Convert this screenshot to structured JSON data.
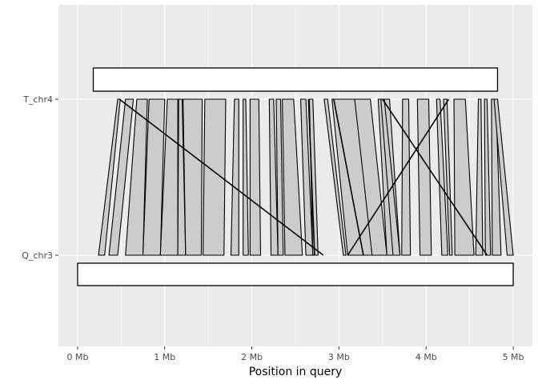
{
  "chart_data": {
    "type": "synteny",
    "xlabel": "Position in query",
    "ylabel": "",
    "xlim": [
      -0.22,
      5.22
    ],
    "x_ticks": [
      {
        "value": 0,
        "label": "0 Mb"
      },
      {
        "value": 1,
        "label": "1 Mb"
      },
      {
        "value": 2,
        "label": "2 Mb"
      },
      {
        "value": 3,
        "label": "3 Mb"
      },
      {
        "value": 4,
        "label": "4 Mb"
      },
      {
        "value": 5,
        "label": "5 Mb"
      }
    ],
    "y_categories": [
      "T_chr4",
      "Q_chr3"
    ],
    "grid": true,
    "chromosomes": [
      {
        "name": "T_chr4",
        "start": 0.18,
        "end": 4.82
      },
      {
        "name": "Q_chr3",
        "start": 0.0,
        "end": 5.0
      }
    ],
    "links": [
      {
        "q_start": 0.24,
        "q_end": 0.31,
        "t_start": 0.46,
        "t_end": 0.49
      },
      {
        "q_start": 0.36,
        "q_end": 0.46,
        "t_start": 0.55,
        "t_end": 0.64
      },
      {
        "q_start": 0.55,
        "q_end": 0.75,
        "t_start": 0.68,
        "t_end": 0.8
      },
      {
        "q_start": 0.75,
        "q_end": 0.95,
        "t_start": 0.82,
        "t_end": 1.0
      },
      {
        "q_start": 0.95,
        "q_end": 1.15,
        "t_start": 1.03,
        "t_end": 1.15
      },
      {
        "q_start": 1.15,
        "q_end": 1.24,
        "t_start": 1.16,
        "t_end": 1.2
      },
      {
        "q_start": 1.24,
        "q_end": 1.42,
        "t_start": 1.21,
        "t_end": 1.43
      },
      {
        "q_start": 1.44,
        "q_end": 1.68,
        "t_start": 1.46,
        "t_end": 1.7
      },
      {
        "q_start": 1.76,
        "q_end": 1.85,
        "t_start": 1.8,
        "t_end": 1.85
      },
      {
        "q_start": 1.9,
        "q_end": 1.96,
        "t_start": 1.9,
        "t_end": 1.93
      },
      {
        "q_start": 1.98,
        "q_end": 2.1,
        "t_start": 1.98,
        "t_end": 2.08
      },
      {
        "q_start": 2.22,
        "q_end": 2.3,
        "t_start": 2.2,
        "t_end": 2.25
      },
      {
        "q_start": 2.3,
        "q_end": 2.36,
        "t_start": 2.28,
        "t_end": 2.33
      },
      {
        "q_start": 2.38,
        "q_end": 2.58,
        "t_start": 2.35,
        "t_end": 2.48
      },
      {
        "q_start": 2.62,
        "q_end": 2.7,
        "t_start": 2.56,
        "t_end": 2.62
      },
      {
        "q_start": 2.7,
        "q_end": 2.76,
        "t_start": 2.66,
        "t_end": 2.7
      },
      {
        "q_start": 3.05,
        "q_end": 3.08,
        "t_start": 2.83,
        "t_end": 2.87
      },
      {
        "q_start": 3.1,
        "q_end": 3.4,
        "t_start": 2.92,
        "t_end": 3.18
      },
      {
        "q_start": 3.38,
        "q_end": 3.55,
        "t_start": 3.18,
        "t_end": 3.36
      },
      {
        "q_start": 3.55,
        "q_end": 3.7,
        "t_start": 3.45,
        "t_end": 3.58
      },
      {
        "q_start": 3.62,
        "q_end": 3.7,
        "t_start": 3.48,
        "t_end": 3.52
      },
      {
        "q_start": 3.72,
        "q_end": 3.82,
        "t_start": 3.73,
        "t_end": 3.8
      },
      {
        "q_start": 3.93,
        "q_end": 4.06,
        "t_start": 3.9,
        "t_end": 4.03
      },
      {
        "q_start": 4.18,
        "q_end": 4.25,
        "t_start": 4.12,
        "t_end": 4.16
      },
      {
        "q_start": 4.27,
        "q_end": 4.3,
        "t_start": 4.2,
        "t_end": 4.24
      },
      {
        "q_start": 4.33,
        "q_end": 4.55,
        "t_start": 4.32,
        "t_end": 4.45
      },
      {
        "q_start": 4.57,
        "q_end": 4.65,
        "t_start": 4.6,
        "t_end": 4.63
      },
      {
        "q_start": 4.68,
        "q_end": 4.74,
        "t_start": 4.67,
        "t_end": 4.7
      },
      {
        "q_start": 4.76,
        "q_end": 4.86,
        "t_start": 4.75,
        "t_end": 4.8
      },
      {
        "q_start": 4.93,
        "q_end": 5.0,
        "t_start": 4.78,
        "t_end": 4.82
      }
    ],
    "crossing_lines": [
      {
        "q": 2.82,
        "t": 0.48
      },
      {
        "q": 3.1,
        "t": 4.26
      },
      {
        "q": 4.7,
        "t": 3.5
      },
      {
        "q": 3.28,
        "t": 2.94
      },
      {
        "q": 2.72,
        "t": 2.65
      }
    ]
  }
}
